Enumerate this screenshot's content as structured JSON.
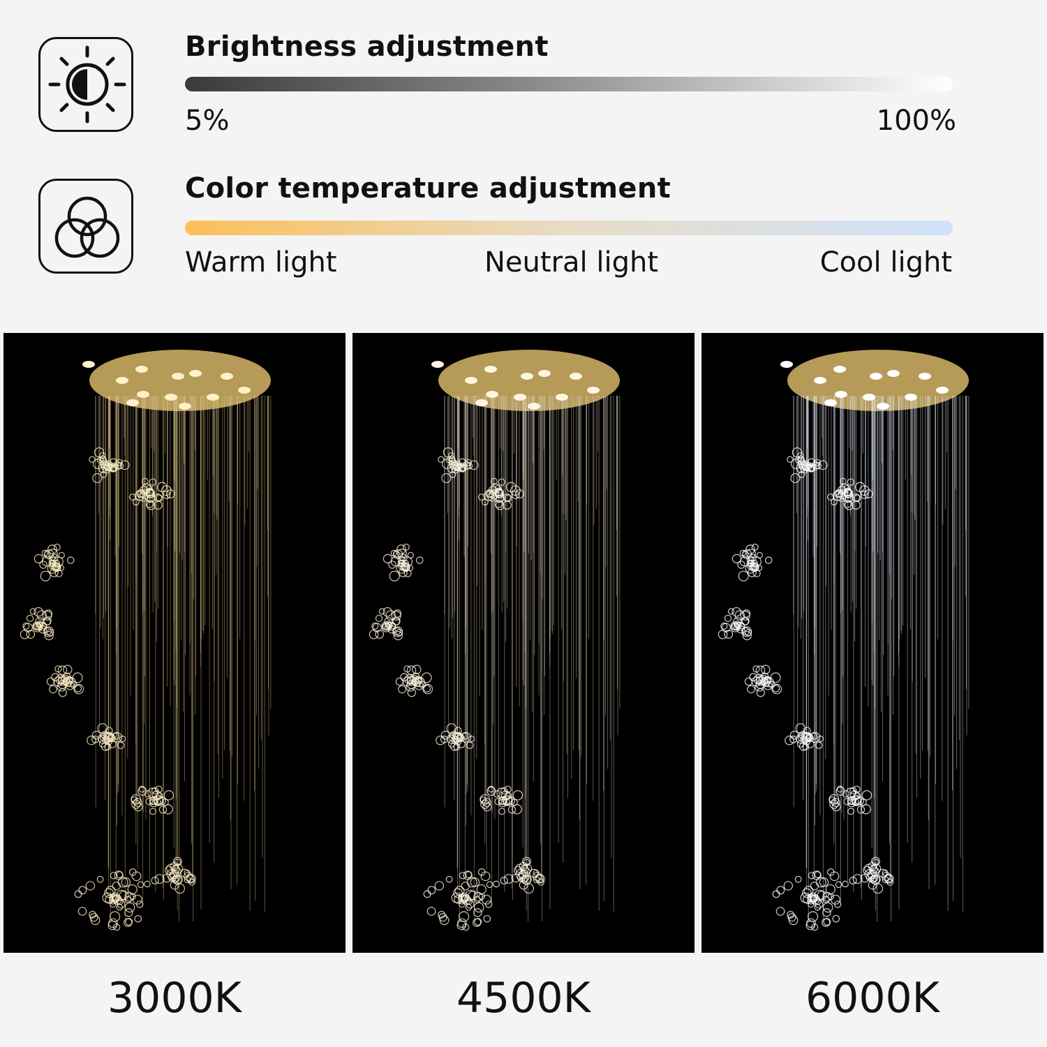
{
  "brightness": {
    "icon": "sun-half-icon",
    "title": "Brightness adjustment",
    "min_label": "5%",
    "max_label": "100%",
    "gradient": [
      "#3a3a3a",
      "#ffffff"
    ]
  },
  "color_temperature": {
    "icon": "three-circles-icon",
    "title": "Color temperature adjustment",
    "labels": [
      "Warm light",
      "Neutral light",
      "Cool light"
    ],
    "gradient": [
      "#fbbf5a",
      "#e7dcc6",
      "#cfe2fb"
    ]
  },
  "panels": [
    {
      "label": "3000K",
      "strand_color": "#d9c089",
      "glow_color": "#fff1c8"
    },
    {
      "label": "4500K",
      "strand_color": "#d6cbb6",
      "glow_color": "#fff6e2"
    },
    {
      "label": "6000K",
      "strand_color": "#dfe5ee",
      "glow_color": "#ffffff"
    }
  ]
}
